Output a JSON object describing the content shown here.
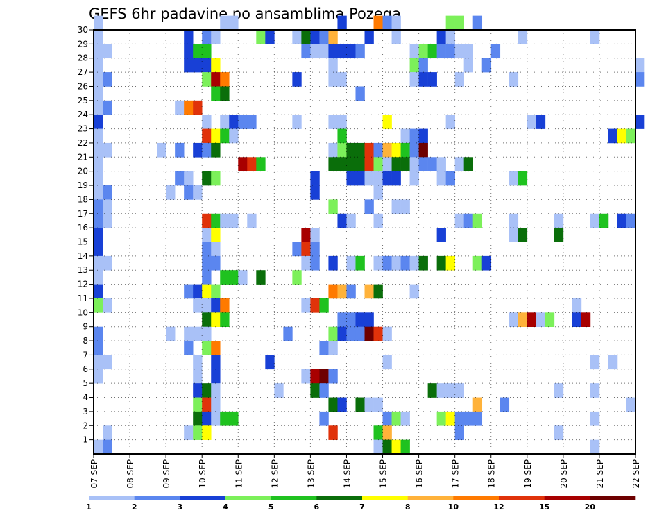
{
  "chart_data": {
    "type": "heatmap",
    "title": "GEFS 6hr padavine po ansamblima Pozega",
    "y_ticks": [
      "1",
      "2",
      "3",
      "4",
      "5",
      "6",
      "7",
      "8",
      "9",
      "10",
      "11",
      "12",
      "13",
      "14",
      "15",
      "16",
      "17",
      "18",
      "19",
      "20",
      "21",
      "22",
      "23",
      "24",
      "25",
      "26",
      "27",
      "28",
      "29",
      "30"
    ],
    "x_ticks": [
      "07 SEP",
      "08 SEP",
      "09 SEP",
      "10 SEP",
      "11 SEP",
      "12 SEP",
      "13 SEP",
      "14 SEP",
      "15 SEP",
      "16 SEP",
      "17 SEP",
      "18 SEP",
      "19 SEP",
      "20 SEP",
      "21 SEP",
      "22 SEP"
    ],
    "x_range_days": [
      0,
      15
    ],
    "steps_per_day": 4,
    "y_range": [
      0,
      30
    ],
    "colorbar": {
      "labels": [
        "1",
        "2",
        "3",
        "4",
        "5",
        "6",
        "7",
        "8",
        "10",
        "12",
        "15",
        "20"
      ],
      "colors": [
        "#a9c1f7",
        "#5b86ef",
        "#1840d6",
        "#7cf05a",
        "#1fc21f",
        "#0a6e0a",
        "#ffff00",
        "#ffb23a",
        "#ff7a00",
        "#e0320a",
        "#a80000",
        "#6e0000"
      ]
    },
    "cells": [
      [
        30,
        0,
        1
      ],
      [
        30,
        14,
        1
      ],
      [
        30,
        15,
        1
      ],
      [
        30,
        27,
        3
      ],
      [
        30,
        31,
        9
      ],
      [
        30,
        32,
        2
      ],
      [
        30,
        33,
        1
      ],
      [
        30,
        39,
        4
      ],
      [
        30,
        40,
        4
      ],
      [
        30,
        42,
        2
      ],
      [
        29,
        0,
        1
      ],
      [
        29,
        10,
        3
      ],
      [
        29,
        12,
        2
      ],
      [
        29,
        13,
        1
      ],
      [
        29,
        18,
        4
      ],
      [
        29,
        19,
        3
      ],
      [
        29,
        22,
        1
      ],
      [
        29,
        23,
        6
      ],
      [
        29,
        24,
        3
      ],
      [
        29,
        25,
        2
      ],
      [
        29,
        26,
        8
      ],
      [
        29,
        30,
        3
      ],
      [
        29,
        33,
        1
      ],
      [
        29,
        38,
        3
      ],
      [
        29,
        39,
        1
      ],
      [
        29,
        47,
        1
      ],
      [
        29,
        55,
        1
      ],
      [
        28,
        0,
        1
      ],
      [
        28,
        1,
        1
      ],
      [
        28,
        10,
        3
      ],
      [
        28,
        11,
        5
      ],
      [
        28,
        12,
        5
      ],
      [
        28,
        23,
        2
      ],
      [
        28,
        24,
        1
      ],
      [
        28,
        25,
        1
      ],
      [
        28,
        26,
        3
      ],
      [
        28,
        27,
        3
      ],
      [
        28,
        28,
        3
      ],
      [
        28,
        29,
        2
      ],
      [
        28,
        35,
        1
      ],
      [
        28,
        36,
        4
      ],
      [
        28,
        37,
        5
      ],
      [
        28,
        38,
        2
      ],
      [
        28,
        39,
        2
      ],
      [
        28,
        40,
        1
      ],
      [
        28,
        41,
        1
      ],
      [
        28,
        44,
        2
      ],
      [
        27,
        0,
        1
      ],
      [
        27,
        10,
        3
      ],
      [
        27,
        11,
        3
      ],
      [
        27,
        12,
        3
      ],
      [
        27,
        13,
        7
      ],
      [
        27,
        26,
        1
      ],
      [
        27,
        35,
        4
      ],
      [
        27,
        36,
        2
      ],
      [
        27,
        41,
        1
      ],
      [
        27,
        43,
        2
      ],
      [
        27,
        60,
        1
      ],
      [
        26,
        0,
        1
      ],
      [
        26,
        1,
        2
      ],
      [
        26,
        12,
        4
      ],
      [
        26,
        13,
        11
      ],
      [
        26,
        14,
        9
      ],
      [
        26,
        22,
        3
      ],
      [
        26,
        26,
        1
      ],
      [
        26,
        27,
        1
      ],
      [
        26,
        35,
        1
      ],
      [
        26,
        36,
        3
      ],
      [
        26,
        37,
        3
      ],
      [
        26,
        40,
        1
      ],
      [
        26,
        46,
        1
      ],
      [
        26,
        60,
        2
      ],
      [
        25,
        0,
        1
      ],
      [
        25,
        13,
        5
      ],
      [
        25,
        14,
        6
      ],
      [
        25,
        29,
        2
      ],
      [
        24,
        0,
        1
      ],
      [
        24,
        1,
        2
      ],
      [
        24,
        9,
        1
      ],
      [
        24,
        10,
        9
      ],
      [
        24,
        11,
        10
      ],
      [
        23,
        0,
        3
      ],
      [
        23,
        12,
        1
      ],
      [
        23,
        14,
        1
      ],
      [
        23,
        15,
        3
      ],
      [
        23,
        16,
        2
      ],
      [
        23,
        17,
        2
      ],
      [
        23,
        22,
        1
      ],
      [
        23,
        26,
        1
      ],
      [
        23,
        27,
        1
      ],
      [
        23,
        32,
        7
      ],
      [
        23,
        39,
        1
      ],
      [
        23,
        48,
        1
      ],
      [
        23,
        49,
        3
      ],
      [
        23,
        60,
        3
      ],
      [
        22,
        0,
        1
      ],
      [
        22,
        12,
        10
      ],
      [
        22,
        13,
        7
      ],
      [
        22,
        14,
        5
      ],
      [
        22,
        15,
        1
      ],
      [
        22,
        27,
        5
      ],
      [
        22,
        34,
        1
      ],
      [
        22,
        35,
        2
      ],
      [
        22,
        36,
        3
      ],
      [
        22,
        57,
        3
      ],
      [
        22,
        58,
        7
      ],
      [
        22,
        59,
        4
      ],
      [
        21,
        0,
        1
      ],
      [
        21,
        1,
        1
      ],
      [
        21,
        7,
        1
      ],
      [
        21,
        9,
        2
      ],
      [
        21,
        11,
        3
      ],
      [
        21,
        12,
        2
      ],
      [
        21,
        13,
        6
      ],
      [
        21,
        26,
        1
      ],
      [
        21,
        27,
        4
      ],
      [
        21,
        28,
        6
      ],
      [
        21,
        29,
        6
      ],
      [
        21,
        30,
        10
      ],
      [
        21,
        31,
        2
      ],
      [
        21,
        32,
        8
      ],
      [
        21,
        33,
        7
      ],
      [
        21,
        34,
        5
      ],
      [
        21,
        35,
        2
      ],
      [
        21,
        36,
        12
      ],
      [
        20,
        0,
        1
      ],
      [
        20,
        16,
        11
      ],
      [
        20,
        17,
        10
      ],
      [
        20,
        18,
        5
      ],
      [
        20,
        26,
        6
      ],
      [
        20,
        27,
        6
      ],
      [
        20,
        28,
        6
      ],
      [
        20,
        29,
        6
      ],
      [
        20,
        30,
        10
      ],
      [
        20,
        31,
        4
      ],
      [
        20,
        32,
        1
      ],
      [
        20,
        33,
        6
      ],
      [
        20,
        34,
        6
      ],
      [
        20,
        35,
        1
      ],
      [
        20,
        36,
        2
      ],
      [
        20,
        37,
        2
      ],
      [
        20,
        38,
        1
      ],
      [
        20,
        40,
        1
      ],
      [
        20,
        41,
        6
      ],
      [
        19,
        0,
        1
      ],
      [
        19,
        9,
        2
      ],
      [
        19,
        10,
        1
      ],
      [
        19,
        12,
        6
      ],
      [
        19,
        13,
        4
      ],
      [
        19,
        24,
        3
      ],
      [
        19,
        28,
        3
      ],
      [
        19,
        29,
        3
      ],
      [
        19,
        30,
        1
      ],
      [
        19,
        31,
        1
      ],
      [
        19,
        32,
        3
      ],
      [
        19,
        33,
        3
      ],
      [
        19,
        35,
        1
      ],
      [
        19,
        38,
        1
      ],
      [
        19,
        39,
        2
      ],
      [
        19,
        46,
        1
      ],
      [
        19,
        47,
        5
      ],
      [
        18,
        0,
        1
      ],
      [
        18,
        1,
        2
      ],
      [
        18,
        8,
        1
      ],
      [
        18,
        10,
        2
      ],
      [
        18,
        11,
        1
      ],
      [
        18,
        24,
        3
      ],
      [
        18,
        31,
        1
      ],
      [
        17,
        0,
        2
      ],
      [
        17,
        1,
        1
      ],
      [
        17,
        26,
        4
      ],
      [
        17,
        30,
        2
      ],
      [
        17,
        33,
        1
      ],
      [
        17,
        34,
        1
      ],
      [
        16,
        0,
        2
      ],
      [
        16,
        1,
        1
      ],
      [
        16,
        12,
        10
      ],
      [
        16,
        13,
        5
      ],
      [
        16,
        14,
        1
      ],
      [
        16,
        15,
        1
      ],
      [
        16,
        17,
        1
      ],
      [
        16,
        27,
        3
      ],
      [
        16,
        28,
        1
      ],
      [
        16,
        31,
        1
      ],
      [
        16,
        40,
        1
      ],
      [
        16,
        41,
        2
      ],
      [
        16,
        42,
        4
      ],
      [
        16,
        46,
        1
      ],
      [
        16,
        51,
        1
      ],
      [
        16,
        55,
        1
      ],
      [
        16,
        56,
        5
      ],
      [
        16,
        58,
        3
      ],
      [
        16,
        59,
        2
      ],
      [
        15,
        0,
        3
      ],
      [
        15,
        12,
        1
      ],
      [
        15,
        13,
        7
      ],
      [
        15,
        23,
        11
      ],
      [
        15,
        24,
        1
      ],
      [
        15,
        38,
        3
      ],
      [
        15,
        46,
        1
      ],
      [
        15,
        47,
        6
      ],
      [
        15,
        51,
        6
      ],
      [
        14,
        0,
        3
      ],
      [
        14,
        12,
        2
      ],
      [
        14,
        13,
        1
      ],
      [
        14,
        22,
        2
      ],
      [
        14,
        23,
        10
      ],
      [
        14,
        24,
        2
      ],
      [
        13,
        0,
        1
      ],
      [
        13,
        1,
        1
      ],
      [
        13,
        12,
        2
      ],
      [
        13,
        13,
        2
      ],
      [
        13,
        23,
        1
      ],
      [
        13,
        24,
        2
      ],
      [
        13,
        26,
        3
      ],
      [
        13,
        28,
        1
      ],
      [
        13,
        29,
        5
      ],
      [
        13,
        31,
        1
      ],
      [
        13,
        32,
        2
      ],
      [
        13,
        33,
        1
      ],
      [
        13,
        34,
        2
      ],
      [
        13,
        35,
        1
      ],
      [
        13,
        36,
        6
      ],
      [
        13,
        38,
        6
      ],
      [
        13,
        39,
        7
      ],
      [
        13,
        42,
        4
      ],
      [
        13,
        43,
        3
      ],
      [
        12,
        0,
        1
      ],
      [
        12,
        12,
        2
      ],
      [
        12,
        14,
        5
      ],
      [
        12,
        15,
        5
      ],
      [
        12,
        16,
        1
      ],
      [
        12,
        18,
        6
      ],
      [
        12,
        22,
        4
      ],
      [
        11,
        0,
        3
      ],
      [
        11,
        10,
        2
      ],
      [
        11,
        11,
        3
      ],
      [
        11,
        12,
        7
      ],
      [
        11,
        13,
        4
      ],
      [
        11,
        26,
        9
      ],
      [
        11,
        27,
        8
      ],
      [
        11,
        28,
        2
      ],
      [
        11,
        30,
        8
      ],
      [
        11,
        31,
        6
      ],
      [
        11,
        35,
        1
      ],
      [
        10,
        0,
        4
      ],
      [
        10,
        1,
        1
      ],
      [
        10,
        11,
        1
      ],
      [
        10,
        12,
        1
      ],
      [
        10,
        13,
        3
      ],
      [
        10,
        14,
        9
      ],
      [
        10,
        23,
        1
      ],
      [
        10,
        24,
        10
      ],
      [
        10,
        25,
        5
      ],
      [
        10,
        53,
        1
      ],
      [
        9,
        12,
        6
      ],
      [
        9,
        13,
        7
      ],
      [
        9,
        14,
        5
      ],
      [
        9,
        27,
        2
      ],
      [
        9,
        28,
        2
      ],
      [
        9,
        29,
        3
      ],
      [
        9,
        30,
        3
      ],
      [
        9,
        46,
        1
      ],
      [
        9,
        47,
        8
      ],
      [
        9,
        48,
        11
      ],
      [
        9,
        49,
        1
      ],
      [
        9,
        50,
        4
      ],
      [
        9,
        53,
        3
      ],
      [
        9,
        54,
        11
      ],
      [
        8,
        0,
        2
      ],
      [
        8,
        8,
        1
      ],
      [
        8,
        10,
        1
      ],
      [
        8,
        11,
        1
      ],
      [
        8,
        12,
        1
      ],
      [
        8,
        21,
        2
      ],
      [
        8,
        26,
        4
      ],
      [
        8,
        27,
        3
      ],
      [
        8,
        28,
        2
      ],
      [
        8,
        29,
        2
      ],
      [
        8,
        30,
        12
      ],
      [
        8,
        31,
        10
      ],
      [
        8,
        32,
        1
      ],
      [
        7,
        0,
        2
      ],
      [
        7,
        10,
        2
      ],
      [
        7,
        12,
        4
      ],
      [
        7,
        13,
        9
      ],
      [
        7,
        25,
        2
      ],
      [
        7,
        26,
        1
      ],
      [
        6,
        0,
        1
      ],
      [
        6,
        1,
        1
      ],
      [
        6,
        11,
        1
      ],
      [
        6,
        13,
        3
      ],
      [
        6,
        19,
        3
      ],
      [
        6,
        32,
        1
      ],
      [
        6,
        55,
        1
      ],
      [
        6,
        57,
        1
      ],
      [
        5,
        0,
        1
      ],
      [
        5,
        11,
        1
      ],
      [
        5,
        13,
        3
      ],
      [
        5,
        23,
        1
      ],
      [
        5,
        24,
        11
      ],
      [
        5,
        25,
        12
      ],
      [
        5,
        26,
        2
      ],
      [
        4,
        11,
        3
      ],
      [
        4,
        12,
        6
      ],
      [
        4,
        13,
        1
      ],
      [
        4,
        20,
        1
      ],
      [
        4,
        24,
        6
      ],
      [
        4,
        25,
        2
      ],
      [
        4,
        37,
        6
      ],
      [
        4,
        38,
        1
      ],
      [
        4,
        39,
        1
      ],
      [
        4,
        40,
        1
      ],
      [
        4,
        51,
        1
      ],
      [
        4,
        55,
        1
      ],
      [
        3,
        11,
        4
      ],
      [
        3,
        12,
        10
      ],
      [
        3,
        13,
        1
      ],
      [
        3,
        26,
        6
      ],
      [
        3,
        27,
        3
      ],
      [
        3,
        29,
        6
      ],
      [
        3,
        30,
        1
      ],
      [
        3,
        31,
        1
      ],
      [
        3,
        42,
        8
      ],
      [
        3,
        45,
        2
      ],
      [
        3,
        59,
        1
      ],
      [
        2,
        11,
        6
      ],
      [
        2,
        12,
        3
      ],
      [
        2,
        13,
        1
      ],
      [
        2,
        14,
        5
      ],
      [
        2,
        15,
        5
      ],
      [
        2,
        25,
        2
      ],
      [
        2,
        32,
        2
      ],
      [
        2,
        33,
        4
      ],
      [
        2,
        34,
        1
      ],
      [
        2,
        38,
        4
      ],
      [
        2,
        39,
        7
      ],
      [
        2,
        40,
        2
      ],
      [
        2,
        41,
        2
      ],
      [
        2,
        42,
        2
      ],
      [
        2,
        55,
        1
      ],
      [
        1,
        1,
        1
      ],
      [
        1,
        10,
        1
      ],
      [
        1,
        11,
        4
      ],
      [
        1,
        12,
        7
      ],
      [
        1,
        26,
        10
      ],
      [
        1,
        31,
        5
      ],
      [
        1,
        32,
        8
      ],
      [
        1,
        40,
        2
      ],
      [
        1,
        51,
        1
      ],
      [
        0,
        0,
        1
      ],
      [
        0,
        1,
        2
      ],
      [
        0,
        31,
        1
      ],
      [
        0,
        32,
        6
      ],
      [
        0,
        33,
        7
      ],
      [
        0,
        34,
        5
      ],
      [
        0,
        55,
        1
      ]
    ]
  }
}
